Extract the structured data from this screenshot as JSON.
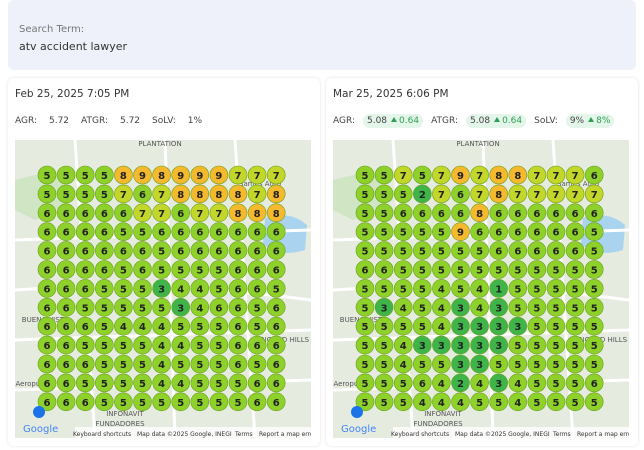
{
  "search": {
    "label": "Search Term:",
    "term": "atv accident lawyer"
  },
  "panels": [
    {
      "date": "Feb 25, 2025 7:05 PM",
      "metrics": [
        {
          "name": "AGR:",
          "value": "5.72"
        },
        {
          "name": "ATGR:",
          "value": "5.72"
        },
        {
          "name": "SoLV:",
          "value": "1%"
        }
      ],
      "grid": [
        [
          5,
          5,
          5,
          5,
          8,
          9,
          8,
          9,
          9,
          9,
          7,
          7,
          7
        ],
        [
          5,
          5,
          5,
          5,
          7,
          6,
          7,
          8,
          8,
          8,
          8,
          7,
          8
        ],
        [
          6,
          6,
          6,
          6,
          6,
          7,
          7,
          6,
          7,
          7,
          8,
          8,
          8
        ],
        [
          6,
          6,
          6,
          6,
          5,
          5,
          6,
          6,
          6,
          6,
          6,
          6,
          6
        ],
        [
          6,
          6,
          6,
          6,
          6,
          6,
          5,
          6,
          6,
          6,
          6,
          6,
          6
        ],
        [
          6,
          6,
          6,
          6,
          5,
          6,
          5,
          5,
          5,
          5,
          6,
          6,
          6
        ],
        [
          6,
          6,
          6,
          5,
          5,
          5,
          3,
          4,
          4,
          5,
          6,
          6,
          5
        ],
        [
          6,
          6,
          5,
          5,
          5,
          5,
          5,
          3,
          4,
          6,
          6,
          5,
          6
        ],
        [
          6,
          6,
          6,
          5,
          4,
          4,
          4,
          5,
          5,
          5,
          6,
          5,
          6
        ],
        [
          6,
          6,
          5,
          5,
          5,
          5,
          4,
          4,
          5,
          5,
          6,
          6,
          6
        ],
        [
          6,
          6,
          6,
          5,
          5,
          5,
          4,
          5,
          5,
          5,
          6,
          5,
          6
        ],
        [
          6,
          6,
          5,
          5,
          5,
          5,
          4,
          4,
          5,
          5,
          5,
          6,
          6
        ],
        [
          6,
          6,
          6,
          5,
          5,
          5,
          5,
          5,
          5,
          5,
          5,
          6,
          6
        ]
      ]
    },
    {
      "date": "Mar 25, 2025 6:06 PM",
      "metrics": [
        {
          "name": "AGR:",
          "value": "5.08",
          "change": "0.64"
        },
        {
          "name": "ATGR:",
          "value": "5.08",
          "change": "0.64"
        },
        {
          "name": "SoLV:",
          "value": "9%",
          "change": "8%"
        }
      ],
      "grid": [
        [
          5,
          5,
          7,
          5,
          7,
          9,
          7,
          8,
          8,
          7,
          7,
          7,
          6
        ],
        [
          5,
          5,
          5,
          2,
          7,
          6,
          7,
          8,
          7,
          7,
          7,
          7,
          7
        ],
        [
          5,
          5,
          6,
          6,
          6,
          6,
          8,
          6,
          6,
          6,
          6,
          6,
          6
        ],
        [
          5,
          5,
          5,
          5,
          5,
          9,
          6,
          6,
          6,
          6,
          6,
          6,
          5
        ],
        [
          5,
          5,
          5,
          5,
          5,
          5,
          5,
          6,
          6,
          6,
          6,
          6,
          5
        ],
        [
          6,
          6,
          5,
          5,
          5,
          5,
          5,
          5,
          5,
          5,
          5,
          5,
          5
        ],
        [
          5,
          5,
          5,
          5,
          4,
          5,
          4,
          1,
          5,
          5,
          5,
          5,
          5
        ],
        [
          5,
          3,
          4,
          5,
          4,
          3,
          4,
          3,
          5,
          5,
          5,
          5,
          5
        ],
        [
          5,
          5,
          5,
          5,
          4,
          3,
          3,
          3,
          3,
          5,
          5,
          5,
          5
        ],
        [
          5,
          5,
          4,
          3,
          3,
          3,
          3,
          3,
          5,
          5,
          5,
          5,
          5
        ],
        [
          5,
          5,
          4,
          5,
          5,
          3,
          3,
          5,
          5,
          5,
          5,
          5,
          5
        ],
        [
          5,
          5,
          5,
          6,
          4,
          2,
          4,
          3,
          4,
          5,
          5,
          5,
          6
        ],
        [
          5,
          5,
          5,
          4,
          4,
          4,
          5,
          5,
          4,
          5,
          5,
          5,
          5
        ]
      ]
    }
  ],
  "map": {
    "places": [
      "PLANTATION",
      "Sames Auto",
      "BUENA VISTA",
      "INFONAVIT",
      "FUNDADORES",
      "CONCORD HILLS",
      "Aeropuerto"
    ],
    "footer": [
      "Google",
      "Keyboard shortcuts",
      "Map data ©2025 Google, INEGI",
      "Terms",
      "Report a map error"
    ]
  }
}
